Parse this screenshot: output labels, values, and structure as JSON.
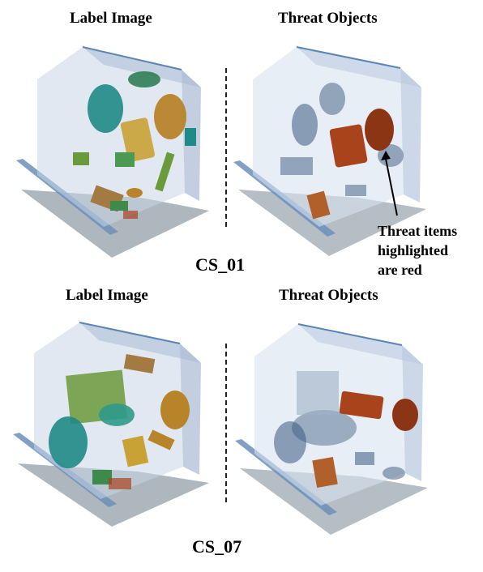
{
  "cases": [
    {
      "id": "CS_01",
      "left_title": "Label Image",
      "right_title": "Threat Objects",
      "left_image": "label-volume-render",
      "right_image": "threat-volume-render"
    },
    {
      "id": "CS_07",
      "left_title": "Label Image",
      "right_title": "Threat Objects",
      "left_image": "label-volume-render",
      "right_image": "threat-volume-render"
    }
  ],
  "annotation": {
    "text": "Threat items highlighted are red",
    "arrow": "arrow-icon"
  },
  "colors": {
    "container_glass": "#c9d6e6",
    "container_floor": "#9aa4ae",
    "edge_blue": "#5b84b5",
    "label_green": "#3d8a4a",
    "label_teal": "#1f8a86",
    "label_amber": "#b8842a",
    "threat_red": "#a8431c",
    "threat_blue_gray": "#3c5a80"
  }
}
